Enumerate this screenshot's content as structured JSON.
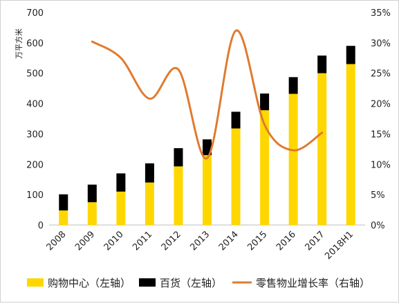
{
  "chart_data": {
    "type": "bar",
    "title": "",
    "categories": [
      "2008",
      "2009",
      "2010",
      "2011",
      "2012",
      "2013",
      "2014",
      "2015",
      "2016",
      "2017",
      "2018H1"
    ],
    "ylabel": "万平方米",
    "ylim": [
      0,
      700
    ],
    "y_ticks": [
      "0",
      "100",
      "200",
      "300",
      "400",
      "500",
      "600",
      "700"
    ],
    "y2lim": [
      0,
      35
    ],
    "y2_ticks": [
      "0%",
      "5%",
      "10%",
      "15%",
      "20%",
      "25%",
      "30%",
      "35%"
    ],
    "grid": false,
    "legend_position": "bottom",
    "series": [
      {
        "name": "购物中心（左轴）",
        "type": "bar",
        "axis": "left",
        "stack": "area",
        "color": "#FFD700",
        "values": [
          48,
          75,
          110,
          140,
          193,
          230,
          318,
          378,
          432,
          500,
          530
        ]
      },
      {
        "name": "百货（左轴）",
        "type": "bar",
        "axis": "left",
        "stack": "area",
        "color": "#000000",
        "values": [
          53,
          58,
          60,
          63,
          60,
          52,
          55,
          55,
          55,
          58,
          60
        ]
      },
      {
        "name": "零售物业增长率（右轴）",
        "type": "line",
        "axis": "right",
        "color": "#E07A2E",
        "values": [
          null,
          30.2,
          27.5,
          20.8,
          25.6,
          11.0,
          32.0,
          16.5,
          12.3,
          15.2,
          null
        ]
      }
    ]
  }
}
